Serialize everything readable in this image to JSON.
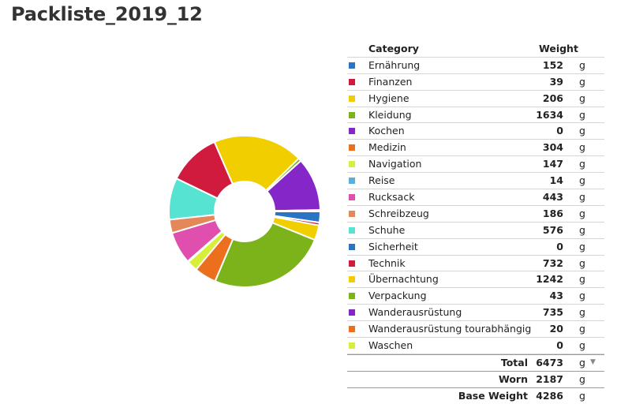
{
  "page": {
    "title": "Packliste_2019_12"
  },
  "table": {
    "headers": {
      "category": "Category",
      "weight": "Weight"
    },
    "unit": "g",
    "totals": [
      {
        "label": "Total",
        "value": "6473",
        "unit": "g",
        "caret": "▼"
      },
      {
        "label": "Worn",
        "value": "2187",
        "unit": "g"
      },
      {
        "label": "Base Weight",
        "value": "4286",
        "unit": "g"
      }
    ]
  },
  "chart_data": {
    "type": "pie",
    "style": "donut",
    "legend": "table-right",
    "categories": [
      {
        "name": "Ernährung",
        "value": 152,
        "color": "#2a74c5"
      },
      {
        "name": "Finanzen",
        "value": 39,
        "color": "#d01a3e"
      },
      {
        "name": "Hygiene",
        "value": 206,
        "color": "#f0ce00"
      },
      {
        "name": "Kleidung",
        "value": 1634,
        "color": "#7cb31a"
      },
      {
        "name": "Kochen",
        "value": 0,
        "color": "#8526c9"
      },
      {
        "name": "Medizin",
        "value": 304,
        "color": "#ec6f1d"
      },
      {
        "name": "Navigation",
        "value": 147,
        "color": "#d7ee3a"
      },
      {
        "name": "Reise",
        "value": 14,
        "color": "#5aafe0"
      },
      {
        "name": "Rucksack",
        "value": 443,
        "color": "#e04fad"
      },
      {
        "name": "Schreibzeug",
        "value": 186,
        "color": "#e4885a"
      },
      {
        "name": "Schuhe",
        "value": 576,
        "color": "#56e3d1"
      },
      {
        "name": "Sicherheit",
        "value": 0,
        "color": "#2a74c5"
      },
      {
        "name": "Technik",
        "value": 732,
        "color": "#d01a3e"
      },
      {
        "name": "Übernachtung",
        "value": 1242,
        "color": "#f0ce00"
      },
      {
        "name": "Verpackung",
        "value": 43,
        "color": "#7cb31a"
      },
      {
        "name": "Wanderausrüstung",
        "value": 735,
        "color": "#8526c9"
      },
      {
        "name": "Wanderausrüstung tourabhängig",
        "value": 20,
        "color": "#ec6f1d"
      },
      {
        "name": "Waschen",
        "value": 0,
        "color": "#d7ee3a"
      }
    ]
  }
}
